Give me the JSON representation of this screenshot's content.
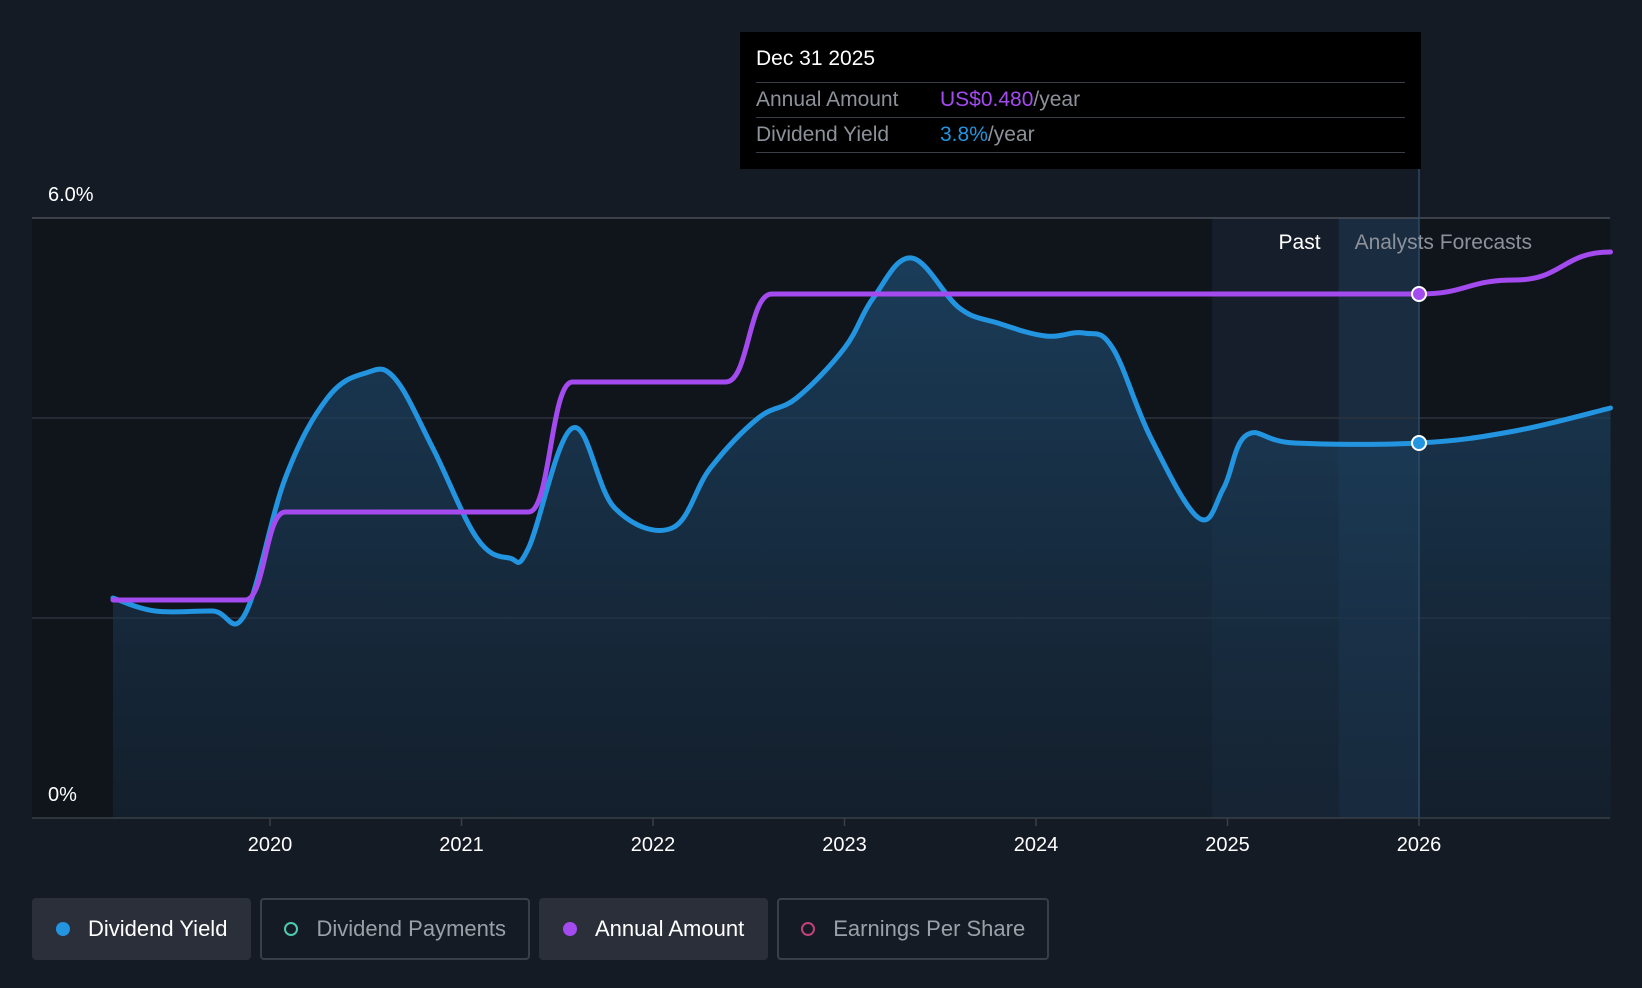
{
  "chart_data": {
    "type": "line",
    "y_axis": {
      "min": 0,
      "max": 6.0,
      "tick_labels": [
        "6.0%",
        "0%"
      ]
    },
    "x_axis": {
      "tick_labels": [
        "2020",
        "2021",
        "2022",
        "2023",
        "2024",
        "2025",
        "2026"
      ],
      "min": 2019.0,
      "max": 2027.0
    },
    "regions": {
      "past_label": "Past",
      "forecast_label": "Analysts Forecasts",
      "past_start": 2024.92,
      "forecast_start": 2025.58,
      "now": 2026.0
    },
    "series": [
      {
        "name": "Dividend Yield",
        "color": "#2394e0",
        "fill": true,
        "points": [
          [
            2019.18,
            2.2
          ],
          [
            2019.4,
            2.07
          ],
          [
            2019.7,
            2.07
          ],
          [
            2019.87,
            2.04
          ],
          [
            2020.08,
            3.4
          ],
          [
            2020.3,
            4.2
          ],
          [
            2020.5,
            4.45
          ],
          [
            2020.65,
            4.4
          ],
          [
            2020.85,
            3.7
          ],
          [
            2021.08,
            2.8
          ],
          [
            2021.25,
            2.6
          ],
          [
            2021.35,
            2.7
          ],
          [
            2021.58,
            3.9
          ],
          [
            2021.8,
            3.1
          ],
          [
            2022.1,
            2.9
          ],
          [
            2022.3,
            3.5
          ],
          [
            2022.55,
            4.0
          ],
          [
            2022.75,
            4.2
          ],
          [
            2023.0,
            4.7
          ],
          [
            2023.15,
            5.2
          ],
          [
            2023.35,
            5.6
          ],
          [
            2023.6,
            5.1
          ],
          [
            2023.8,
            4.95
          ],
          [
            2024.05,
            4.82
          ],
          [
            2024.25,
            4.85
          ],
          [
            2024.4,
            4.7
          ],
          [
            2024.6,
            3.8
          ],
          [
            2024.85,
            3.0
          ],
          [
            2024.98,
            3.3
          ],
          [
            2025.1,
            3.83
          ],
          [
            2025.35,
            3.75
          ],
          [
            2026.0,
            3.75
          ],
          [
            2026.5,
            3.87
          ],
          [
            2027.0,
            4.1
          ]
        ]
      },
      {
        "name": "Annual Amount",
        "color": "#a44bf0",
        "fill": false,
        "points": [
          [
            2019.18,
            2.18
          ],
          [
            2019.87,
            2.18
          ],
          [
            2020.08,
            3.06
          ],
          [
            2021.35,
            3.06
          ],
          [
            2021.58,
            4.36
          ],
          [
            2022.38,
            4.36
          ],
          [
            2022.62,
            5.24
          ],
          [
            2026.0,
            5.24
          ],
          [
            2026.5,
            5.38
          ],
          [
            2027.0,
            5.66
          ]
        ]
      }
    ],
    "highlight": {
      "date": "Dec 31 2025",
      "x": 2026.0,
      "annual_amount_label": "Annual Amount",
      "annual_amount_value": "US$0.480",
      "annual_amount_suffix": "/year",
      "dividend_yield_label": "Dividend Yield",
      "dividend_yield_value": "3.8%",
      "dividend_yield_suffix": "/year",
      "dividend_yield_point": 3.75,
      "annual_amount_point": 5.24
    },
    "legend": [
      {
        "label": "Dividend Yield",
        "color": "#2394e0",
        "active": true,
        "filled": true
      },
      {
        "label": "Dividend Payments",
        "color": "#4ec9b0",
        "active": false,
        "filled": false
      },
      {
        "label": "Annual Amount",
        "color": "#a44bf0",
        "active": true,
        "filled": true
      },
      {
        "label": "Earnings Per Share",
        "color": "#c0417a",
        "active": false,
        "filled": false
      }
    ]
  }
}
